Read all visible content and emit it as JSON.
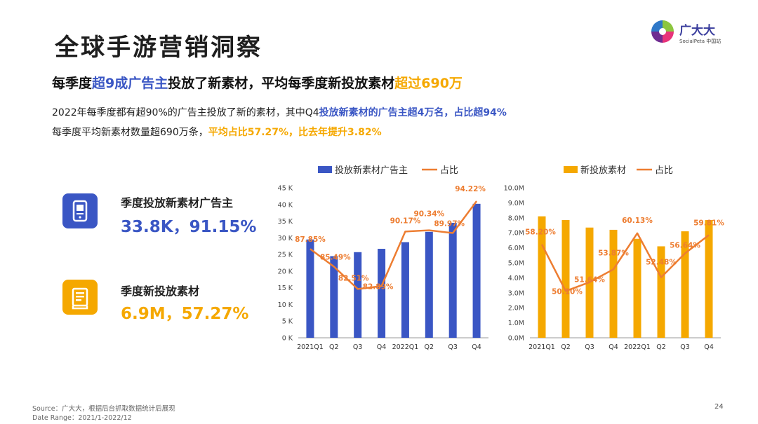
{
  "title": "全球手游营销洞察",
  "logo": {
    "name": "广大大",
    "sub": "SocialPeta 中国站"
  },
  "headline": {
    "p1": "每季度",
    "h1": "超9成广告主",
    "p2": "投放了新素材，平均每季度新投放素材",
    "h2": "超过690万"
  },
  "body": {
    "line1_plain": "2022年每季度都有超90%的广告主投放了新的素材，其中Q4",
    "line1_bold": "投放新素材的广告主超4万名，占比超94%",
    "line2_plain": "每季度平均新素材数量超690万条，",
    "line2_bold": "平均占比57.27%，比去年提升3.82%"
  },
  "cards": [
    {
      "label": "季度投放新素材广告主",
      "value": "33.8K，91.15%",
      "icon": "phone-ad-icon",
      "color": "#3a56c4"
    },
    {
      "label": "季度新投放素材",
      "value": "6.9M，57.27%",
      "icon": "creative-doc-icon",
      "color": "#f5a800"
    }
  ],
  "colors": {
    "blue": "#3a56c4",
    "orange": "#f5a800",
    "line": "#ed7d31"
  },
  "chart_data": [
    {
      "type": "bar",
      "categories": [
        "2021Q1",
        "Q2",
        "Q3",
        "Q4",
        "2022Q1",
        "Q2",
        "Q3",
        "Q4"
      ],
      "series": [
        {
          "name": "投放新素材广告主",
          "type": "bar",
          "axis": "left",
          "values": [
            29500,
            24500,
            25700,
            26700,
            28700,
            31800,
            34500,
            40200
          ]
        },
        {
          "name": "占比",
          "type": "line",
          "axis": "right",
          "values": [
            87.85,
            85.49,
            82.51,
            82.89,
            90.17,
            90.34,
            89.97,
            94.22
          ],
          "labels": [
            "87.85%",
            "85.49%",
            "82.51%",
            "82.89%",
            "90.17%",
            "90.34%",
            "89.97%",
            "94.22%"
          ]
        }
      ],
      "yticks": [
        "0 K",
        "5 K",
        "10 K",
        "15 K",
        "20 K",
        "25 K",
        "30 K",
        "35 K",
        "40 K",
        "45 K"
      ],
      "ylim": [
        0,
        45000
      ],
      "y2lim": [
        76,
        96
      ]
    },
    {
      "type": "bar",
      "categories": [
        "2021Q1",
        "Q2",
        "Q3",
        "Q4",
        "2022Q1",
        "Q2",
        "Q3",
        "Q4"
      ],
      "series": [
        {
          "name": "新投放素材",
          "type": "bar",
          "axis": "left",
          "values": [
            8.1,
            7.85,
            7.35,
            7.2,
            6.6,
            6.1,
            7.1,
            7.85
          ]
        },
        {
          "name": "占比",
          "type": "line",
          "axis": "right",
          "values": [
            58.2,
            50.1,
            51.64,
            53.87,
            60.13,
            52.48,
            56.64,
            59.81
          ],
          "labels": [
            "58.20%",
            "50.10%",
            "51.64%",
            "53.87%",
            "60.13%",
            "52.48%",
            "56.64%",
            "59.81%"
          ]
        }
      ],
      "yticks": [
        "0.0M",
        "1.0M",
        "2.0M",
        "3.0M",
        "4.0M",
        "5.0M",
        "6.0M",
        "7.0M",
        "8.0M",
        "9.0M",
        "10.0M"
      ],
      "ylim": [
        0,
        10
      ],
      "y2lim": [
        42,
        68
      ]
    }
  ],
  "footer": {
    "source": "Source：广大大，根据后台抓取数据统计后展现",
    "range": "Date Range：2021/1-2022/12",
    "page": "24"
  }
}
